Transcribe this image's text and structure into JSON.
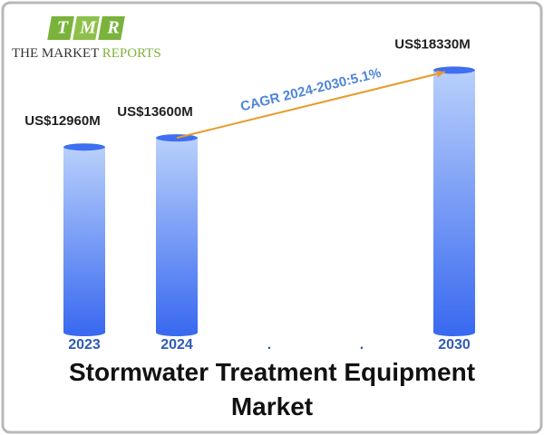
{
  "logo": {
    "letters": [
      "T",
      "M",
      "R"
    ],
    "name": "THE MARKET",
    "name_accent": "REPORTS"
  },
  "chart_data": {
    "type": "bar",
    "title": "Stormwater Treatment Equipment Market",
    "categories": [
      "2023",
      "2024",
      ".",
      ".",
      "2030"
    ],
    "values": [
      12960,
      13600,
      null,
      null,
      18330
    ],
    "value_labels": [
      "US$12960M",
      "US$13600M",
      null,
      null,
      "US$18330M"
    ],
    "annotation": "CAGR 2024-2030:5.1%",
    "color": "#3f6ff0",
    "arrow_color": "#e89a2c",
    "ylim": [
      0,
      20000
    ]
  }
}
